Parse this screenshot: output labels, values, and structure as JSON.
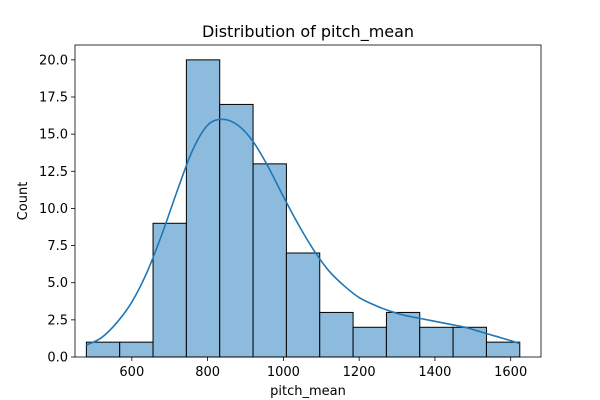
{
  "chart_data": {
    "type": "bar",
    "subtype": "histogram_with_kde",
    "title": "Distribution of pitch_mean",
    "xlabel": "pitch_mean",
    "ylabel": "Count",
    "bin_edges": [
      480,
      568,
      656,
      744,
      832,
      920,
      1008,
      1096,
      1184,
      1272,
      1360,
      1448,
      1536,
      1624
    ],
    "counts": [
      1,
      1,
      9,
      20,
      17,
      13,
      7,
      3,
      2,
      3,
      2,
      2,
      1
    ],
    "kde": {
      "x": [
        480,
        520,
        560,
        600,
        640,
        680,
        720,
        760,
        800,
        840,
        880,
        920,
        960,
        1000,
        1040,
        1080,
        1120,
        1160,
        1200,
        1240,
        1280,
        1320,
        1360,
        1400,
        1440,
        1480,
        1520,
        1560,
        1600,
        1624
      ],
      "y": [
        0.8,
        1.3,
        2.3,
        3.7,
        5.7,
        8.3,
        11.2,
        13.9,
        15.6,
        16.0,
        15.6,
        14.5,
        12.8,
        10.8,
        8.9,
        7.2,
        5.8,
        4.8,
        4.0,
        3.5,
        3.1,
        2.8,
        2.6,
        2.4,
        2.2,
        2.0,
        1.7,
        1.4,
        1.1,
        0.9
      ]
    },
    "xlim": [
      450,
      1680
    ],
    "ylim": [
      0,
      21.0
    ],
    "xticks": [
      600,
      800,
      1000,
      1200,
      1400,
      1600
    ],
    "yticks": [
      0.0,
      2.5,
      5.0,
      7.5,
      10.0,
      12.5,
      15.0,
      17.5,
      20.0
    ],
    "ytick_labels": [
      "0.0",
      "2.5",
      "5.0",
      "7.5",
      "10.0",
      "12.5",
      "15.0",
      "17.5",
      "20.0"
    ],
    "grid": false,
    "colors": {
      "bar_fill": "#8dbbdd",
      "bar_edge": "#000000",
      "kde_line": "#1f77b4"
    }
  }
}
